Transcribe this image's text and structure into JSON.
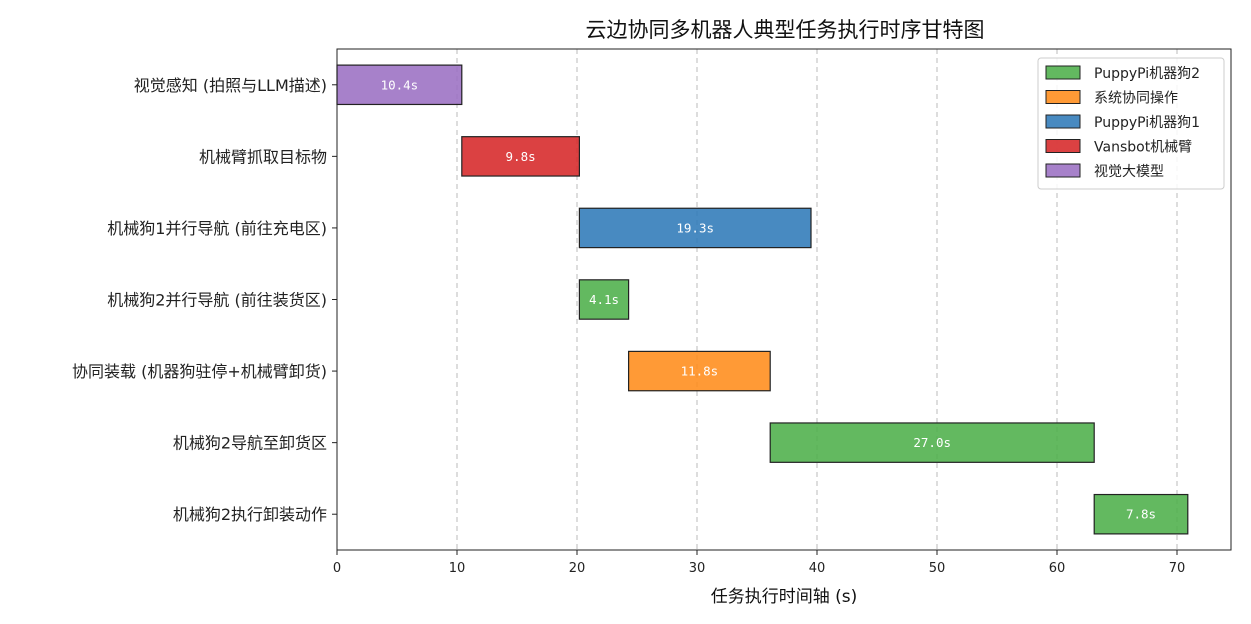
{
  "chart_data": {
    "type": "bar",
    "orientation": "horizontal-gantt",
    "title": "云边协同多机器人典型任务执行时序甘特图",
    "xlabel": "任务执行时间轴 (s)",
    "ylabel": "",
    "xlim": [
      0,
      74.5
    ],
    "xticks": [
      0,
      10,
      20,
      30,
      40,
      50,
      60,
      70
    ],
    "grid": "x-dashed",
    "legend_position": "top-right",
    "legend": [
      {
        "name": "PuppyPi机器狗2",
        "color": "#4daf4a"
      },
      {
        "name": "系统协同操作",
        "color": "#ff8c1a"
      },
      {
        "name": "PuppyPi机器狗1",
        "color": "#2f7ab8"
      },
      {
        "name": "Vansbot机械臂",
        "color": "#d62728"
      },
      {
        "name": "视觉大模型",
        "color": "#9b6fc3"
      }
    ],
    "tasks": [
      {
        "label": "视觉感知 (拍照与LLM描述)",
        "start": 0.0,
        "duration": 10.4,
        "duration_label": "10.4s",
        "color": "#9b6fc3"
      },
      {
        "label": "机械臂抓取目标物",
        "start": 10.4,
        "duration": 9.8,
        "duration_label": "9.8s",
        "color": "#d62728"
      },
      {
        "label": "机械狗1并行导航 (前往充电区)",
        "start": 20.2,
        "duration": 19.3,
        "duration_label": "19.3s",
        "color": "#2f7ab8"
      },
      {
        "label": "机械狗2并行导航 (前往装货区)",
        "start": 20.2,
        "duration": 4.1,
        "duration_label": "4.1s",
        "color": "#4daf4a"
      },
      {
        "label": "协同装载 (机器狗驻停+机械臂卸货)",
        "start": 24.3,
        "duration": 11.8,
        "duration_label": "11.8s",
        "color": "#ff8c1a"
      },
      {
        "label": "机械狗2导航至卸货区",
        "start": 36.1,
        "duration": 27.0,
        "duration_label": "27.0s",
        "color": "#4daf4a"
      },
      {
        "label": "机械狗2执行卸装动作",
        "start": 63.1,
        "duration": 7.8,
        "duration_label": "7.8s",
        "color": "#4daf4a"
      }
    ]
  }
}
